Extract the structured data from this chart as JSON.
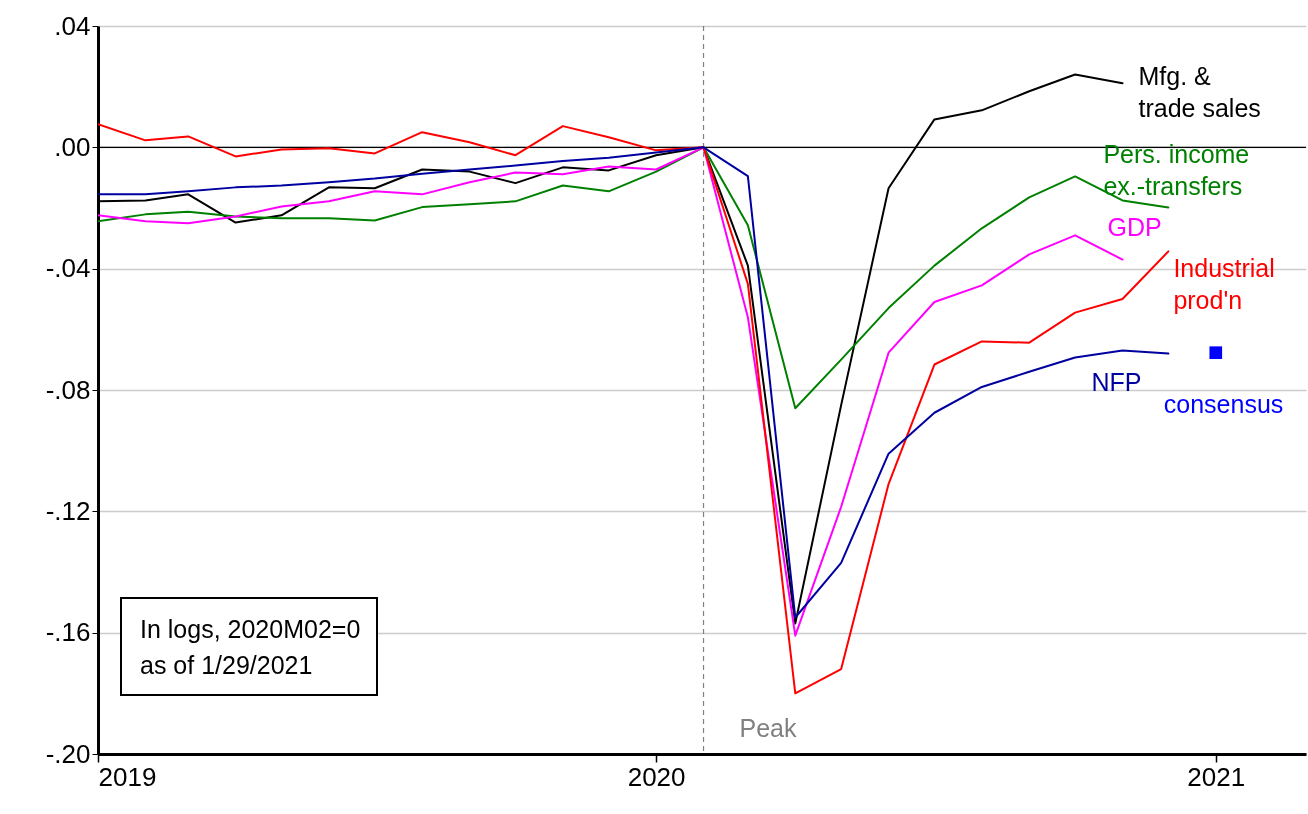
{
  "chart_data": {
    "type": "line",
    "x": [
      "2019-01",
      "2019-02",
      "2019-03",
      "2019-04",
      "2019-05",
      "2019-06",
      "2019-07",
      "2019-08",
      "2019-09",
      "2019-10",
      "2019-11",
      "2019-12",
      "2020-01",
      "2020-02",
      "2020-03",
      "2020-04",
      "2020-05",
      "2020-06",
      "2020-07",
      "2020-08",
      "2020-09",
      "2020-10",
      "2020-11",
      "2020-12"
    ],
    "series": [
      {
        "name": "Mfg. &\ntrade sales",
        "color": "#000000",
        "values": [
          -0.0178,
          -0.0175,
          -0.0155,
          -0.0248,
          -0.0224,
          -0.0132,
          -0.0135,
          -0.0073,
          -0.008,
          -0.0118,
          -0.0066,
          -0.0076,
          -0.0026,
          0,
          -0.039,
          -0.157,
          -0.085,
          -0.0135,
          0.0092,
          0.0122,
          0.0185,
          0.024,
          0.0211,
          null
        ]
      },
      {
        "name": "Pers. income\nex.-transfers",
        "color": "#008000",
        "values": [
          -0.0244,
          -0.0221,
          -0.0212,
          -0.0228,
          -0.0234,
          -0.0234,
          -0.0241,
          -0.0197,
          -0.0188,
          -0.0178,
          -0.0126,
          -0.0145,
          -0.008,
          0,
          -0.0257,
          -0.086,
          -0.07,
          -0.053,
          -0.039,
          -0.0267,
          -0.0165,
          -0.0096,
          -0.0175,
          -0.0198
        ]
      },
      {
        "name": "GDP",
        "color": "#ff00ff",
        "values": [
          -0.0224,
          -0.0244,
          -0.025,
          -0.0228,
          -0.0195,
          -0.0178,
          -0.0145,
          -0.0155,
          -0.0115,
          -0.0083,
          -0.0089,
          -0.0063,
          -0.0073,
          0,
          -0.056,
          -0.161,
          -0.1185,
          -0.0677,
          -0.051,
          -0.0455,
          -0.0353,
          -0.029,
          -0.037,
          null
        ]
      },
      {
        "name": "Industrial\nprod'n",
        "color": "#ff0000",
        "values": [
          0.0076,
          0.0023,
          0.0036,
          -0.003,
          -0.0007,
          -0.0003,
          -0.002,
          0.005,
          0.0017,
          -0.0026,
          0.007,
          0.0033,
          -0.001,
          0,
          -0.045,
          -0.18,
          -0.172,
          -0.111,
          -0.0716,
          -0.064,
          -0.0644,
          -0.0545,
          -0.05,
          -0.0343
        ]
      },
      {
        "name": "NFP",
        "color": "#0000a0",
        "values": [
          -0.0155,
          -0.0155,
          -0.0145,
          -0.0132,
          -0.0126,
          -0.0115,
          -0.0103,
          -0.0087,
          -0.0073,
          -0.006,
          -0.0045,
          -0.0034,
          -0.0017,
          0,
          -0.0095,
          -0.155,
          -0.137,
          -0.101,
          -0.0875,
          -0.079,
          -0.074,
          -0.0693,
          -0.067,
          -0.068
        ]
      },
      {
        "name": "consensus",
        "type": "scatter",
        "marker": "square",
        "color": "#0000ff",
        "x": [
          "2021-01"
        ],
        "values": [
          -0.0677
        ]
      }
    ],
    "xlim": [
      "2019-01",
      "2021-03"
    ],
    "xticks": [
      {
        "value": "2019-01",
        "label": "2019"
      },
      {
        "value": "2020-01",
        "label": "2020"
      },
      {
        "value": "2021-01",
        "label": "2021"
      }
    ],
    "ylim": [
      -0.2,
      0.04
    ],
    "yticks": [
      {
        "value": 0.04,
        "label": ".04"
      },
      {
        "value": 0,
        "label": ".00"
      },
      {
        "value": -0.04,
        "label": "-.04"
      },
      {
        "value": -0.08,
        "label": "-.08"
      },
      {
        "value": -0.12,
        "label": "-.12"
      },
      {
        "value": -0.16,
        "label": "-.16"
      },
      {
        "value": -0.2,
        "label": "-.20"
      }
    ],
    "grid": "y",
    "ref_lines": [
      {
        "axis": "x",
        "value": "2020-02",
        "label": "Peak",
        "color": "#808080",
        "line_style": "dashed"
      },
      {
        "axis": "y",
        "value": 0,
        "color": "#000000",
        "line_style": "solid"
      }
    ],
    "annotations": [
      "In logs, 2020M02=0",
      "as of 1/29/2021"
    ]
  }
}
